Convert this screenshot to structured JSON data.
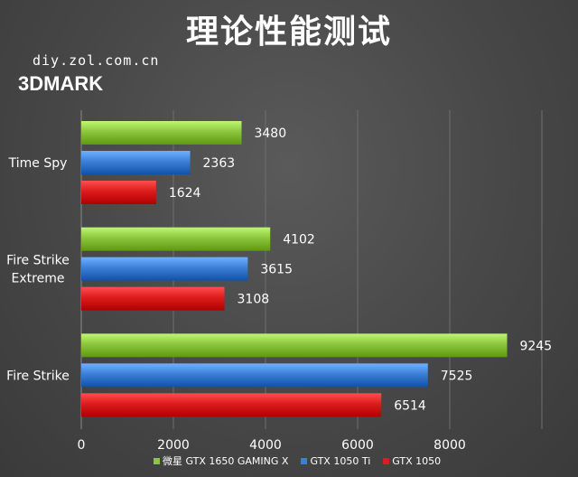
{
  "header": {
    "title": "理论性能测试",
    "source": "diy.zol.com.cn",
    "brand": "3DMARK"
  },
  "chart_data": {
    "type": "bar",
    "orientation": "horizontal",
    "categories": [
      "Time Spy",
      "Fire Strike\nExtreme",
      "Fire Strike"
    ],
    "series": [
      {
        "name": "微星 GTX 1650 GAMING X",
        "color": "#8cc63f",
        "values": [
          3480,
          4102,
          9245
        ]
      },
      {
        "name": "GTX 1050 Ti",
        "color": "#3d7fd6",
        "values": [
          2363,
          3615,
          7525
        ]
      },
      {
        "name": "GTX 1050",
        "color": "#dd1c1c",
        "values": [
          1624,
          3108,
          6514
        ]
      }
    ],
    "x_ticks": [
      "0",
      "2000",
      "4000",
      "6000",
      "8000"
    ],
    "xlim": [
      0,
      10000
    ],
    "grid": true,
    "legend_position": "bottom"
  }
}
